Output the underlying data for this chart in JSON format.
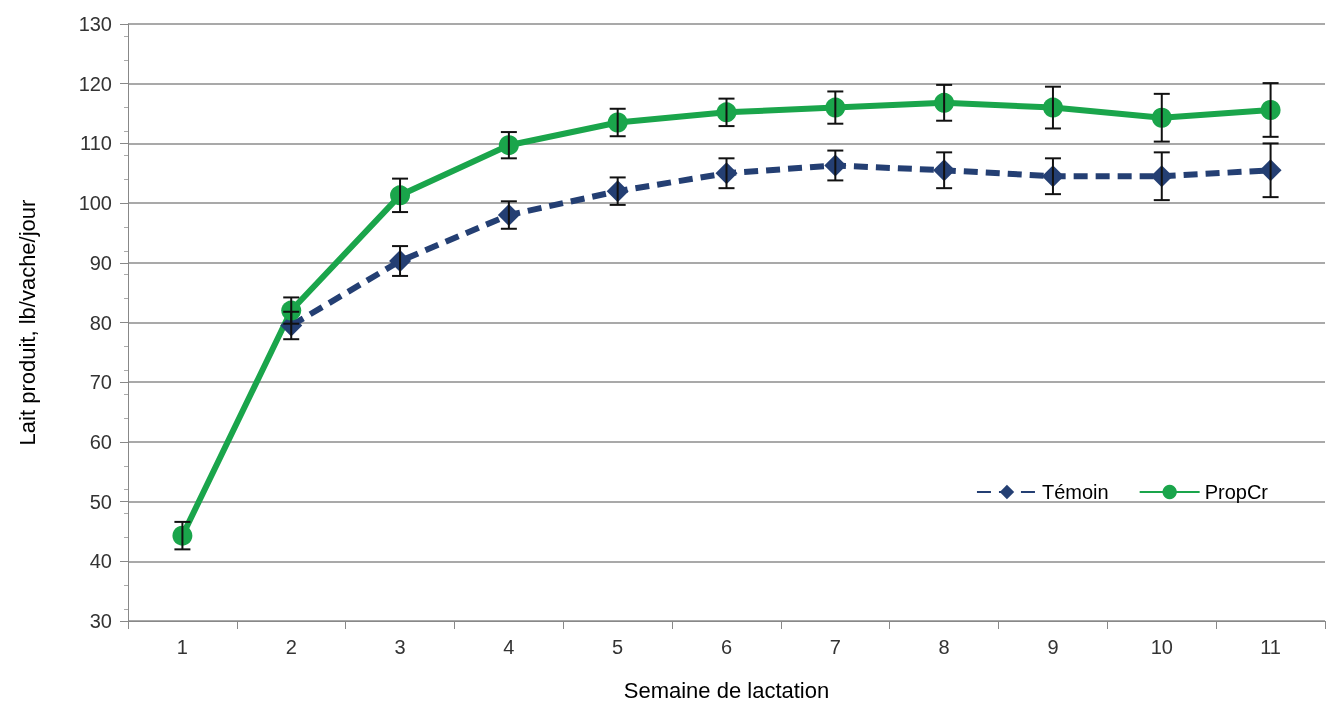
{
  "chart_data": {
    "type": "line",
    "xlabel": "Semaine de lactation",
    "ylabel": "Lait produit, lb/vache/jour",
    "categories": [
      "1",
      "2",
      "3",
      "4",
      "5",
      "6",
      "7",
      "8",
      "9",
      "10",
      "11"
    ],
    "series": [
      {
        "name": "Témoin",
        "color": "#243f73",
        "marker": "diamond",
        "line_style": "dashed",
        "values": [
          null,
          79.5,
          90.3,
          98,
          102,
          105,
          106.3,
          105.5,
          104.5,
          104.5,
          105.5
        ],
        "errors": [
          null,
          2.3,
          2.5,
          2.3,
          2.3,
          2.5,
          2.5,
          3,
          3,
          4,
          4.5
        ]
      },
      {
        "name": "PropCr",
        "color": "#1aa54b",
        "marker": "circle",
        "line_style": "solid",
        "values": [
          44.3,
          82,
          101.3,
          109.7,
          113.5,
          115.2,
          116,
          116.8,
          116,
          114.3,
          115.6
        ],
        "errors": [
          2.3,
          2.2,
          2.8,
          2.2,
          2.3,
          2.3,
          2.7,
          3,
          3.5,
          4,
          4.5
        ]
      }
    ],
    "ylim": [
      30,
      130
    ],
    "yticks": [
      30,
      40,
      50,
      60,
      70,
      80,
      90,
      100,
      110,
      120,
      130
    ],
    "grid": "y",
    "legend": "bottom right"
  }
}
